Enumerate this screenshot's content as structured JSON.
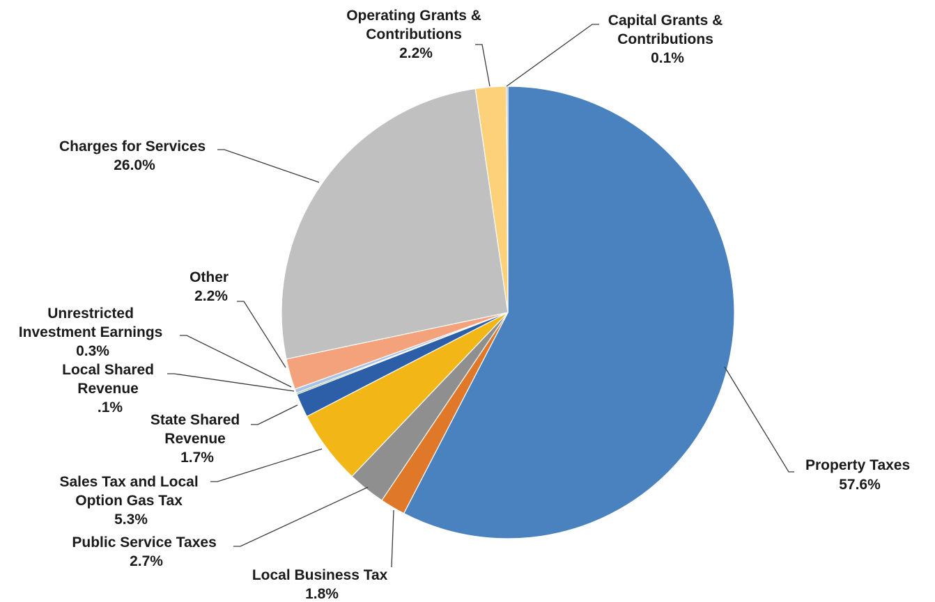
{
  "chart_data": {
    "type": "pie",
    "title": "",
    "slices": [
      {
        "name": "Property Taxes",
        "value": 57.6,
        "label": "57.6%",
        "color": "#4a82c0"
      },
      {
        "name": "Local Business Tax",
        "value": 1.8,
        "label": "1.8%",
        "color": "#e0782a"
      },
      {
        "name": "Public Service Taxes",
        "value": 2.7,
        "label": "2.7%",
        "color": "#8f8f8f"
      },
      {
        "name": "Sales Tax and Local Option Gas Tax",
        "value": 5.3,
        "label": "5.3%",
        "color": "#f2b617"
      },
      {
        "name": "State Shared Revenue",
        "value": 1.7,
        "label": "1.7%",
        "color": "#2d5fa9"
      },
      {
        "name": "Local Shared Revenue",
        "value": 0.1,
        "label": ".1%",
        "color": "#5fa043"
      },
      {
        "name": "Unrestricted Investment Earnings",
        "value": 0.3,
        "label": "0.3%",
        "color": "#a9c3e5"
      },
      {
        "name": "Other",
        "value": 2.2,
        "label": "2.2%",
        "color": "#f4a27c"
      },
      {
        "name": "Charges for Services",
        "value": 26.0,
        "label": "26.0%",
        "color": "#c0c0c0"
      },
      {
        "name": "Operating Grants & Contributions",
        "value": 2.2,
        "label": "2.2%",
        "color": "#fdd07a"
      },
      {
        "name": "Capital Grants & Contributions",
        "value": 0.1,
        "label": "0.1%",
        "color": "#6d9fd7"
      }
    ]
  },
  "labels": {
    "property_taxes": {
      "l1": "Property Taxes",
      "l2": "57.6%"
    },
    "local_business_tax": {
      "l1": "Local Business Tax",
      "l2": "1.8%"
    },
    "public_service_taxes": {
      "l1": "Public Service Taxes",
      "l2": "2.7%"
    },
    "sales_tax": {
      "l1": "Sales Tax and Local",
      "l2": "Option Gas Tax",
      "l3": "5.3%"
    },
    "state_shared": {
      "l1": "State Shared",
      "l2": "Revenue",
      "l3": "1.7%"
    },
    "local_shared": {
      "l1": "Local Shared",
      "l2": "Revenue",
      "l3": ".1%"
    },
    "unrestricted": {
      "l1": "Unrestricted",
      "l2": "Investment Earnings",
      "l3": "0.3%"
    },
    "other": {
      "l1": "Other",
      "l2": "2.2%"
    },
    "charges": {
      "l1": "Charges for Services",
      "l2": "26.0%"
    },
    "operating": {
      "l1": "Operating Grants &",
      "l2": "Contributions",
      "l3": "2.2%"
    },
    "capital": {
      "l1": "Capital Grants &",
      "l2": "Contributions",
      "l3": "0.1%"
    }
  }
}
